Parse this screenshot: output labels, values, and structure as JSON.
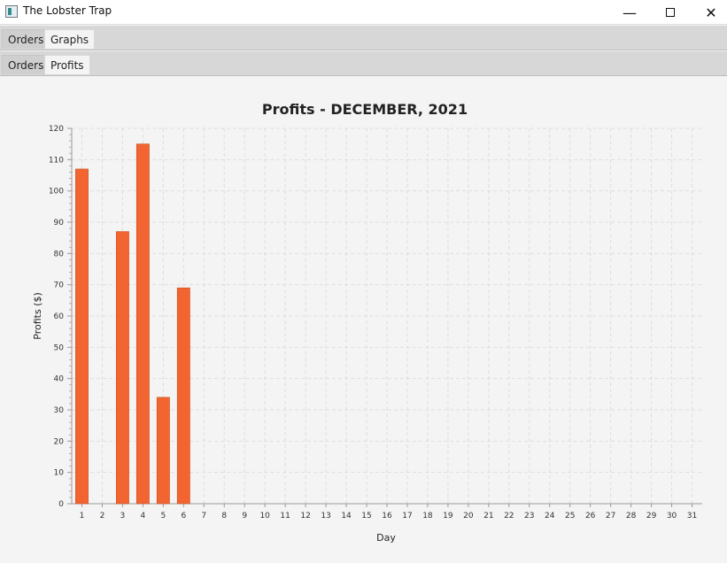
{
  "window": {
    "title": "The Lobster Trap",
    "icon": "app-window-icon",
    "controls": [
      "minimize-icon",
      "maximize-icon",
      "close-icon"
    ]
  },
  "tabs_top": [
    {
      "label": "Orders",
      "selected": false
    },
    {
      "label": "Graphs",
      "selected": true
    }
  ],
  "tabs_sub": [
    {
      "label": "Orders",
      "selected": false
    },
    {
      "label": "Profits",
      "selected": true
    }
  ],
  "colors": {
    "bar": "#f26430",
    "grid": "#dedede",
    "plot_background": "#f4f4f4"
  },
  "chart_data": {
    "type": "bar",
    "title": "Profits - DECEMBER, 2021",
    "xlabel": "Day",
    "ylabel": "Profits ($)",
    "ylim": [
      0,
      120
    ],
    "y_ticks": [
      "0",
      "10",
      "20",
      "30",
      "40",
      "50",
      "60",
      "70",
      "80",
      "90",
      "100",
      "110",
      "120"
    ],
    "categories": [
      "1",
      "2",
      "3",
      "4",
      "5",
      "6",
      "7",
      "8",
      "9",
      "10",
      "11",
      "12",
      "13",
      "14",
      "15",
      "16",
      "17",
      "18",
      "19",
      "20",
      "21",
      "22",
      "23",
      "24",
      "25",
      "26",
      "27",
      "28",
      "29",
      "30",
      "31"
    ],
    "values": [
      107,
      0,
      87,
      115,
      34,
      69,
      0,
      0,
      0,
      0,
      0,
      0,
      0,
      0,
      0,
      0,
      0,
      0,
      0,
      0,
      0,
      0,
      0,
      0,
      0,
      0,
      0,
      0,
      0,
      0,
      0
    ],
    "grid": true,
    "legend": false
  }
}
